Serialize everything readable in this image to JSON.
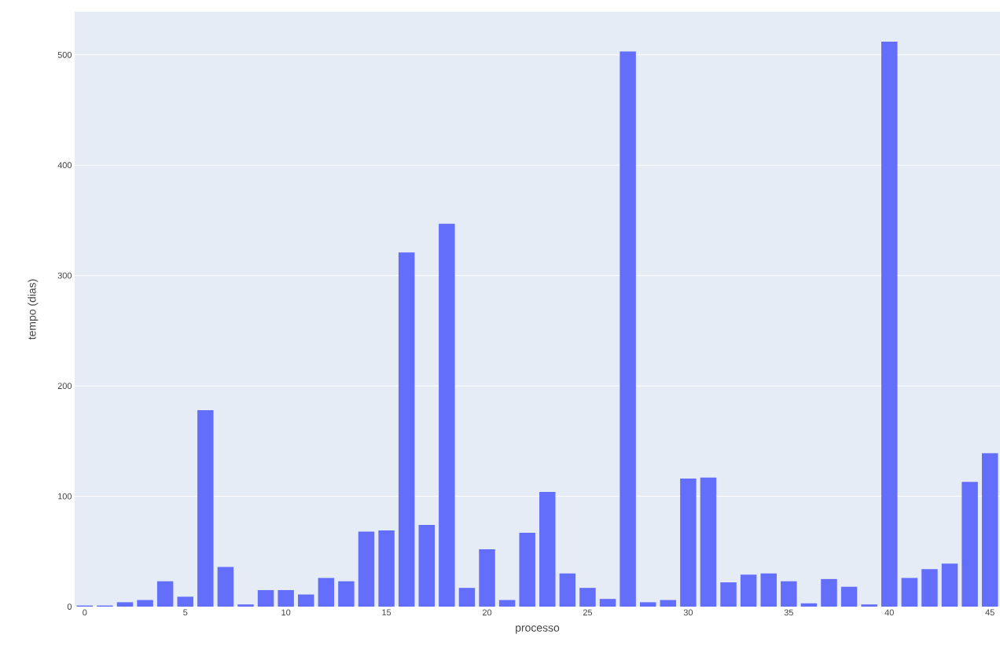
{
  "chart_data": {
    "type": "bar",
    "xlabel": "processo",
    "ylabel": "tempo (dias)",
    "color": "#636efa",
    "x": [
      0,
      1,
      2,
      3,
      4,
      5,
      6,
      7,
      8,
      9,
      10,
      11,
      12,
      13,
      14,
      15,
      16,
      17,
      18,
      19,
      20,
      21,
      22,
      23,
      24,
      25,
      26,
      27,
      28,
      29,
      30,
      31,
      32,
      33,
      34,
      35,
      36,
      37,
      38,
      39,
      40,
      41,
      42,
      43,
      44,
      45
    ],
    "values": [
      1,
      1,
      4,
      6,
      23,
      9,
      178,
      36,
      2,
      15,
      15,
      11,
      26,
      23,
      68,
      69,
      321,
      74,
      347,
      17,
      52,
      6,
      67,
      104,
      30,
      17,
      7,
      503,
      4,
      6,
      116,
      117,
      22,
      29,
      30,
      23,
      3,
      25,
      18,
      2,
      512,
      26,
      34,
      39,
      113,
      139
    ],
    "xlim": [
      -0.5,
      45.5
    ],
    "xticks": [
      0,
      5,
      10,
      15,
      20,
      25,
      30,
      35,
      40,
      45
    ],
    "ylim": [
      0,
      539
    ],
    "yticks": [
      0,
      100,
      200,
      300,
      400,
      500
    ],
    "grid": "y"
  }
}
